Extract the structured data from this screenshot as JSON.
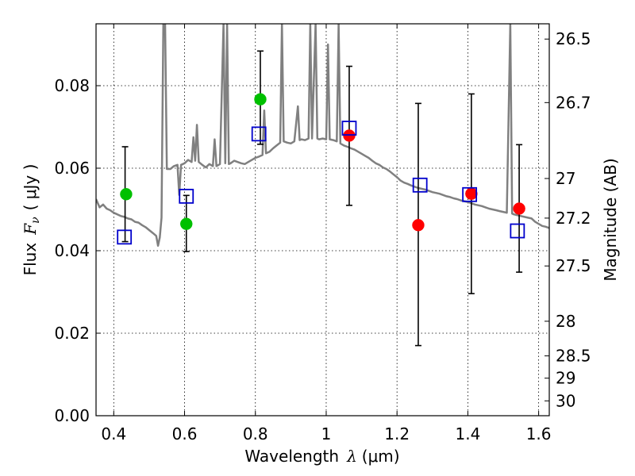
{
  "chart_data": {
    "type": "scatter",
    "xlabel_text": "Wavelength",
    "xlabel_symbol": "λ",
    "xlabel_unit": "(μm)",
    "ylabel_text": "Flux",
    "ylabel_symbol": "F",
    "ylabel_subscript": "ν",
    "ylabel_unit": "( μJy )",
    "y2label": "Magnitude (AB)",
    "xlim": [
      0.35,
      1.63
    ],
    "ylim": [
      0.0,
      0.095
    ],
    "xticks": [
      0.4,
      0.6,
      0.8,
      1.0,
      1.2,
      1.4,
      1.6
    ],
    "xtick_labels": [
      "0.4",
      "0.6",
      "0.8",
      "1",
      "1.2",
      "1.4",
      "1.6"
    ],
    "yticks": [
      0.0,
      0.02,
      0.04,
      0.06,
      0.08
    ],
    "ytick_labels": [
      "0.00",
      "0.02",
      "0.04",
      "0.06",
      "0.08"
    ],
    "mag_ticks": [
      {
        "label": "26.5",
        "flux": 0.0913
      },
      {
        "label": "26.7",
        "flux": 0.0759
      },
      {
        "label": "27",
        "flux": 0.0575
      },
      {
        "label": "27.2",
        "flux": 0.0479
      },
      {
        "label": "27.5",
        "flux": 0.0363
      },
      {
        "label": "28",
        "flux": 0.0229
      },
      {
        "label": "28.5",
        "flux": 0.0145
      },
      {
        "label": "29",
        "flux": 0.0091
      },
      {
        "label": "30",
        "flux": 0.0036
      }
    ],
    "grid": true,
    "series": [
      {
        "name": "observed-green",
        "marker": "circle",
        "color": "#00c000",
        "points": [
          [
            0.435,
            0.0537
          ],
          [
            0.605,
            0.0465
          ],
          [
            0.814,
            0.0767
          ]
        ]
      },
      {
        "name": "observed-red",
        "marker": "circle",
        "color": "#ff0000",
        "points": [
          [
            1.065,
            0.0679
          ],
          [
            1.26,
            0.0462
          ],
          [
            1.41,
            0.0538
          ],
          [
            1.545,
            0.0502
          ]
        ]
      },
      {
        "name": "model-bandpass",
        "marker": "square",
        "color": "#0000cc",
        "points": [
          [
            0.43,
            0.0433
          ],
          [
            0.605,
            0.0532
          ],
          [
            0.81,
            0.0683
          ],
          [
            1.065,
            0.0697
          ],
          [
            1.265,
            0.0559
          ],
          [
            1.405,
            0.0536
          ],
          [
            1.54,
            0.0448
          ]
        ]
      }
    ],
    "error_bars": [
      {
        "x": 0.432,
        "low": 0.0422,
        "high": 0.0652
      },
      {
        "x": 0.605,
        "low": 0.0398,
        "high": 0.0534
      },
      {
        "x": 0.814,
        "low": 0.0658,
        "high": 0.0884
      },
      {
        "x": 1.065,
        "low": 0.051,
        "high": 0.0847
      },
      {
        "x": 1.26,
        "low": 0.017,
        "high": 0.0757
      },
      {
        "x": 1.41,
        "low": 0.0296,
        "high": 0.078
      },
      {
        "x": 1.545,
        "low": 0.0348,
        "high": 0.0657
      }
    ],
    "spectrum": {
      "name": "model-spectrum",
      "color": "#808080",
      "points": [
        [
          0.35,
          0.0525
        ],
        [
          0.36,
          0.0505
        ],
        [
          0.37,
          0.0512
        ],
        [
          0.38,
          0.0502
        ],
        [
          0.39,
          0.0498
        ],
        [
          0.4,
          0.0492
        ],
        [
          0.41,
          0.0488
        ],
        [
          0.42,
          0.0484
        ],
        [
          0.43,
          0.0482
        ],
        [
          0.44,
          0.0478
        ],
        [
          0.45,
          0.0476
        ],
        [
          0.46,
          0.047
        ],
        [
          0.47,
          0.0468
        ],
        [
          0.48,
          0.0462
        ],
        [
          0.49,
          0.0457
        ],
        [
          0.5,
          0.045
        ],
        [
          0.51,
          0.0443
        ],
        [
          0.52,
          0.0436
        ],
        [
          0.525,
          0.0412
        ],
        [
          0.53,
          0.0432
        ],
        [
          0.535,
          0.048
        ],
        [
          0.54,
          0.095
        ],
        [
          0.545,
          0.095
        ],
        [
          0.55,
          0.0598
        ],
        [
          0.56,
          0.0598
        ],
        [
          0.57,
          0.0605
        ],
        [
          0.58,
          0.0608
        ],
        [
          0.585,
          0.0535
        ],
        [
          0.59,
          0.0608
        ],
        [
          0.6,
          0.0612
        ],
        [
          0.61,
          0.062
        ],
        [
          0.62,
          0.0615
        ],
        [
          0.625,
          0.0675
        ],
        [
          0.63,
          0.0618
        ],
        [
          0.635,
          0.0705
        ],
        [
          0.64,
          0.0615
        ],
        [
          0.65,
          0.0608
        ],
        [
          0.66,
          0.0602
        ],
        [
          0.67,
          0.061
        ],
        [
          0.68,
          0.0605
        ],
        [
          0.685,
          0.067
        ],
        [
          0.69,
          0.0605
        ],
        [
          0.7,
          0.061
        ],
        [
          0.71,
          0.095
        ],
        [
          0.715,
          0.0612
        ],
        [
          0.72,
          0.095
        ],
        [
          0.725,
          0.061
        ],
        [
          0.73,
          0.0612
        ],
        [
          0.74,
          0.0618
        ],
        [
          0.75,
          0.0615
        ],
        [
          0.76,
          0.0612
        ],
        [
          0.77,
          0.061
        ],
        [
          0.78,
          0.0615
        ],
        [
          0.79,
          0.062
        ],
        [
          0.8,
          0.0625
        ],
        [
          0.81,
          0.0628
        ],
        [
          0.82,
          0.0632
        ],
        [
          0.825,
          0.074
        ],
        [
          0.83,
          0.0636
        ],
        [
          0.84,
          0.064
        ],
        [
          0.85,
          0.0648
        ],
        [
          0.86,
          0.0655
        ],
        [
          0.87,
          0.0662
        ],
        [
          0.875,
          0.095
        ],
        [
          0.88,
          0.0665
        ],
        [
          0.89,
          0.0662
        ],
        [
          0.9,
          0.066
        ],
        [
          0.91,
          0.0665
        ],
        [
          0.92,
          0.075
        ],
        [
          0.925,
          0.0668
        ],
        [
          0.93,
          0.067
        ],
        [
          0.94,
          0.0668
        ],
        [
          0.95,
          0.0672
        ],
        [
          0.955,
          0.095
        ],
        [
          0.96,
          0.0672
        ],
        [
          0.97,
          0.095
        ],
        [
          0.975,
          0.0672
        ],
        [
          0.98,
          0.067
        ],
        [
          0.99,
          0.0672
        ],
        [
          1.0,
          0.067
        ],
        [
          1.005,
          0.09
        ],
        [
          1.01,
          0.067
        ],
        [
          1.02,
          0.0668
        ],
        [
          1.03,
          0.0665
        ],
        [
          1.035,
          0.095
        ],
        [
          1.04,
          0.066
        ],
        [
          1.05,
          0.0655
        ],
        [
          1.06,
          0.0652
        ],
        [
          1.07,
          0.0648
        ],
        [
          1.08,
          0.0645
        ],
        [
          1.09,
          0.064
        ],
        [
          1.1,
          0.0635
        ],
        [
          1.11,
          0.063
        ],
        [
          1.12,
          0.0625
        ],
        [
          1.13,
          0.0618
        ],
        [
          1.14,
          0.0612
        ],
        [
          1.15,
          0.0608
        ],
        [
          1.16,
          0.0602
        ],
        [
          1.17,
          0.0598
        ],
        [
          1.18,
          0.0592
        ],
        [
          1.19,
          0.0585
        ],
        [
          1.2,
          0.0578
        ],
        [
          1.21,
          0.057
        ],
        [
          1.22,
          0.0565
        ],
        [
          1.23,
          0.0562
        ],
        [
          1.24,
          0.0558
        ],
        [
          1.25,
          0.0555
        ],
        [
          1.26,
          0.0552
        ],
        [
          1.27,
          0.055
        ],
        [
          1.28,
          0.0548
        ],
        [
          1.29,
          0.0545
        ],
        [
          1.3,
          0.0542
        ],
        [
          1.31,
          0.054
        ],
        [
          1.32,
          0.0538
        ],
        [
          1.33,
          0.0535
        ],
        [
          1.34,
          0.0532
        ],
        [
          1.35,
          0.053
        ],
        [
          1.36,
          0.0527
        ],
        [
          1.37,
          0.0525
        ],
        [
          1.38,
          0.0522
        ],
        [
          1.39,
          0.052
        ],
        [
          1.4,
          0.0518
        ],
        [
          1.41,
          0.0515
        ],
        [
          1.42,
          0.0512
        ],
        [
          1.43,
          0.051
        ],
        [
          1.44,
          0.0508
        ],
        [
          1.45,
          0.0505
        ],
        [
          1.46,
          0.0502
        ],
        [
          1.47,
          0.05
        ],
        [
          1.48,
          0.0498
        ],
        [
          1.49,
          0.0496
        ],
        [
          1.5,
          0.0494
        ],
        [
          1.51,
          0.0492
        ],
        [
          1.52,
          0.095
        ],
        [
          1.525,
          0.049
        ],
        [
          1.53,
          0.0488
        ],
        [
          1.54,
          0.0486
        ],
        [
          1.55,
          0.0484
        ],
        [
          1.56,
          0.0482
        ],
        [
          1.57,
          0.048
        ],
        [
          1.58,
          0.0478
        ],
        [
          1.59,
          0.047
        ],
        [
          1.6,
          0.0465
        ],
        [
          1.61,
          0.046
        ],
        [
          1.62,
          0.0458
        ],
        [
          1.63,
          0.0455
        ]
      ]
    }
  }
}
